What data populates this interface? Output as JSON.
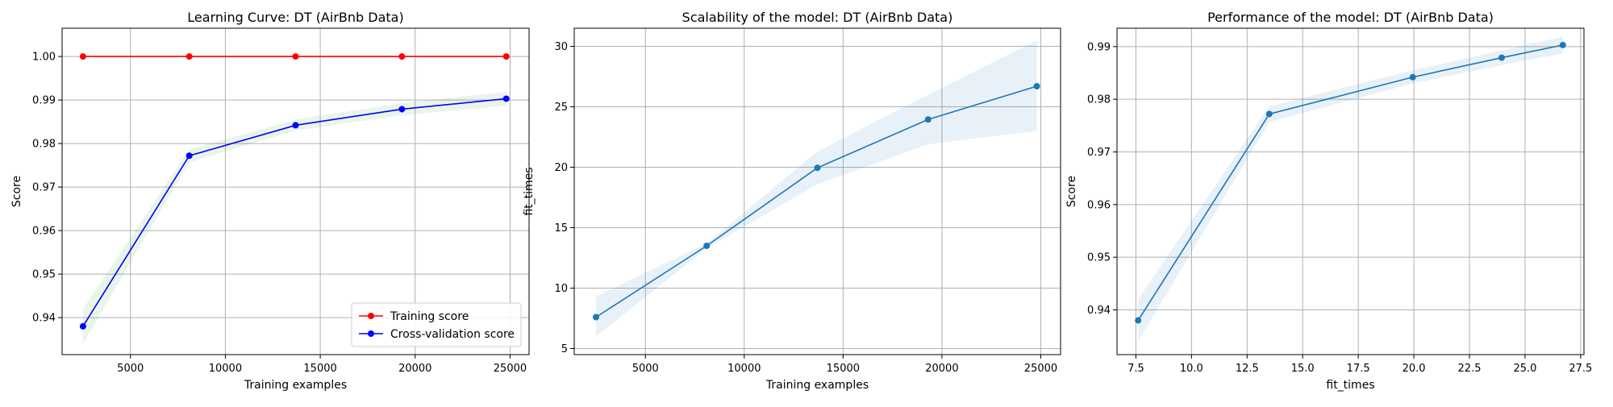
{
  "chart_data": [
    {
      "type": "line",
      "title": "Learning Curve: DT (AirBnb Data)",
      "xlabel": "Training examples",
      "ylabel": "Score",
      "xlim": [
        1400,
        26000
      ],
      "ylim": [
        0.9315,
        1.0065
      ],
      "xticks": [
        5000,
        10000,
        15000,
        20000,
        25000
      ],
      "xtick_labels": [
        "5000",
        "10000",
        "15000",
        "20000",
        "25000"
      ],
      "yticks": [
        0.94,
        0.95,
        0.96,
        0.97,
        0.98,
        0.99,
        1.0
      ],
      "ytick_labels": [
        "0.94",
        "0.95",
        "0.96",
        "0.97",
        "0.98",
        "0.99",
        "1.00"
      ],
      "grid": true,
      "legend": "lower-right",
      "series": [
        {
          "name": "Training score",
          "color": "#ff0000",
          "x": [
            2500,
            8100,
            13700,
            19300,
            24800
          ],
          "y": [
            1.0,
            1.0,
            1.0,
            1.0,
            1.0
          ],
          "band_lower": [
            1.0,
            1.0,
            1.0,
            1.0,
            1.0
          ],
          "band_upper": [
            1.0,
            1.0,
            1.0,
            1.0,
            1.0
          ],
          "band_color": "#ff0000"
        },
        {
          "name": "Cross-validation score",
          "color": "#0000ff",
          "x": [
            2500,
            8100,
            13700,
            19300,
            24800
          ],
          "y": [
            0.938,
            0.9772,
            0.9842,
            0.9879,
            0.9903
          ],
          "band_lower": [
            0.934,
            0.9757,
            0.983,
            0.9865,
            0.9887
          ],
          "band_upper": [
            0.942,
            0.9787,
            0.9855,
            0.9893,
            0.9919
          ],
          "band_color": "#2ca02c"
        }
      ]
    },
    {
      "type": "line",
      "title": "Scalability of the model: DT (AirBnb Data)",
      "xlabel": "Training examples",
      "ylabel": "fit_times",
      "xlim": [
        1400,
        26000
      ],
      "ylim": [
        4.5,
        31.5
      ],
      "xticks": [
        5000,
        10000,
        15000,
        20000,
        25000
      ],
      "xtick_labels": [
        "5000",
        "10000",
        "15000",
        "20000",
        "25000"
      ],
      "yticks": [
        5,
        10,
        15,
        20,
        25,
        30
      ],
      "ytick_labels": [
        "5",
        "10",
        "15",
        "20",
        "25",
        "30"
      ],
      "grid": true,
      "legend": "none",
      "series": [
        {
          "color": "#1f77b4",
          "x": [
            2500,
            8100,
            13700,
            19300,
            24800
          ],
          "y": [
            7.6,
            13.5,
            19.95,
            23.95,
            26.7
          ],
          "band_lower": [
            6.0,
            13.3,
            18.6,
            21.9,
            23.0
          ],
          "band_upper": [
            9.3,
            13.7,
            21.3,
            26.0,
            30.5
          ],
          "band_color": "#1f77b4"
        }
      ]
    },
    {
      "type": "line",
      "title": "Performance of the model: DT (AirBnb Data)",
      "xlabel": "fit_times",
      "ylabel": "Score",
      "xlim": [
        6.65,
        27.65
      ],
      "ylim": [
        0.9315,
        0.9935
      ],
      "xticks": [
        7.5,
        10.0,
        12.5,
        15.0,
        17.5,
        20.0,
        22.5,
        25.0,
        27.5
      ],
      "xtick_labels": [
        "7.5",
        "10.0",
        "12.5",
        "15.0",
        "17.5",
        "20.0",
        "22.5",
        "25.0",
        "27.5"
      ],
      "yticks": [
        0.94,
        0.95,
        0.96,
        0.97,
        0.98,
        0.99
      ],
      "ytick_labels": [
        "0.94",
        "0.95",
        "0.96",
        "0.97",
        "0.98",
        "0.99"
      ],
      "grid": true,
      "legend": "none",
      "series": [
        {
          "color": "#1f77b4",
          "x": [
            7.6,
            13.5,
            19.95,
            23.95,
            26.7
          ],
          "y": [
            0.938,
            0.9772,
            0.9842,
            0.9879,
            0.9903
          ],
          "band_lower": [
            0.934,
            0.9757,
            0.983,
            0.9865,
            0.9887
          ],
          "band_upper": [
            0.942,
            0.9787,
            0.9855,
            0.9893,
            0.9919
          ],
          "band_color": "#1f77b4"
        }
      ]
    }
  ]
}
